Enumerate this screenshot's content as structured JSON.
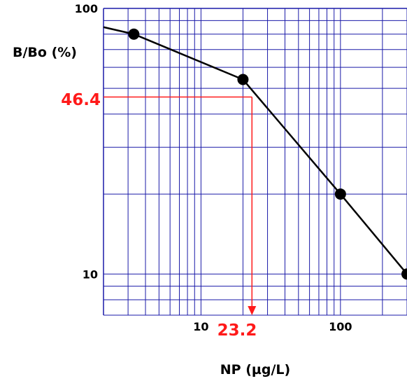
{
  "chart_data": {
    "type": "line",
    "title": "",
    "xlabel": "NP (µg/L)",
    "ylabel": "B/Bo (%)",
    "x_scale": "log",
    "y_scale": "log",
    "xlim": [
      2,
      300
    ],
    "ylim": [
      7,
      100
    ],
    "grid": true,
    "x_tick_labels": [
      {
        "value": 10,
        "label": "10"
      },
      {
        "value": 100,
        "label": "100"
      }
    ],
    "y_tick_labels": [
      {
        "value": 100,
        "label": "100"
      },
      {
        "value": 10,
        "label": "10"
      }
    ],
    "series": [
      {
        "marker": "circle",
        "points": [
          {
            "x": 2,
            "y": 85
          },
          {
            "x": 3.3,
            "y": 80
          },
          {
            "x": 20,
            "y": 54
          },
          {
            "x": 100,
            "y": 20
          },
          {
            "x": 300,
            "y": 10
          }
        ],
        "marked_points": [
          {
            "x": 3.3,
            "y": 80
          },
          {
            "x": 20,
            "y": 54
          },
          {
            "x": 100,
            "y": 20
          },
          {
            "x": 300,
            "y": 10
          }
        ]
      }
    ],
    "annotation": {
      "y_value": 46.4,
      "y_label": "46.4",
      "x_value": 23.2,
      "x_label": "23.2"
    },
    "colors": {
      "grid": "#1a1aa8",
      "line": "#000000",
      "annotation": "#ff1a1a"
    }
  }
}
